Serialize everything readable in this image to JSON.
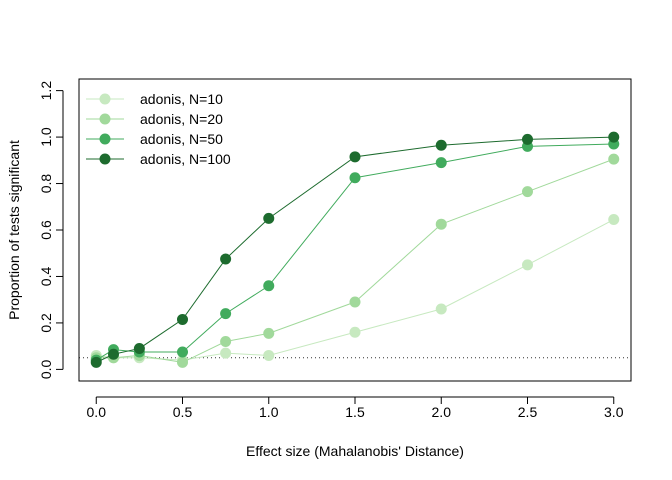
{
  "chart_data": {
    "type": "line",
    "title": "",
    "xlabel": "Effect size (Mahalanobis' Distance)",
    "ylabel": "Proportion of tests significant",
    "xlim": [
      -0.1,
      3.1
    ],
    "ylim": [
      -0.05,
      1.25
    ],
    "x_ticks": [
      0.0,
      0.5,
      1.0,
      1.5,
      2.0,
      2.5,
      3.0
    ],
    "y_ticks": [
      0.0,
      0.2,
      0.4,
      0.6,
      0.8,
      1.0,
      1.2
    ],
    "x_tick_labels": [
      "0.0",
      "0.5",
      "1.0",
      "1.5",
      "2.0",
      "2.5",
      "3.0"
    ],
    "y_tick_labels": [
      "0.0",
      "0.2",
      "0.4",
      "0.6",
      "0.8",
      "1.0",
      "1.2"
    ],
    "reference_line": {
      "y": 0.05,
      "style": "dotted"
    },
    "grid": false,
    "legend_position": "top-left",
    "x": [
      0.0,
      0.1,
      0.25,
      0.5,
      0.75,
      1.0,
      1.5,
      2.0,
      2.5,
      3.0
    ],
    "series": [
      {
        "name": "adonis, N=10",
        "color": "#c7e9c0",
        "values": [
          0.06,
          0.05,
          0.05,
          0.04,
          0.07,
          0.06,
          0.16,
          0.26,
          0.45,
          0.645
        ]
      },
      {
        "name": "adonis, N=20",
        "color": "#a1d99b",
        "values": [
          0.05,
          0.05,
          0.06,
          0.03,
          0.12,
          0.155,
          0.29,
          0.625,
          0.765,
          0.905
        ]
      },
      {
        "name": "adonis, N=50",
        "color": "#41ab5d",
        "values": [
          0.04,
          0.085,
          0.075,
          0.075,
          0.24,
          0.36,
          0.825,
          0.89,
          0.96,
          0.97
        ]
      },
      {
        "name": "adonis, N=100",
        "color": "#1d6b2e",
        "values": [
          0.03,
          0.065,
          0.09,
          0.215,
          0.475,
          0.65,
          0.915,
          0.965,
          0.99,
          1.0
        ]
      }
    ]
  }
}
